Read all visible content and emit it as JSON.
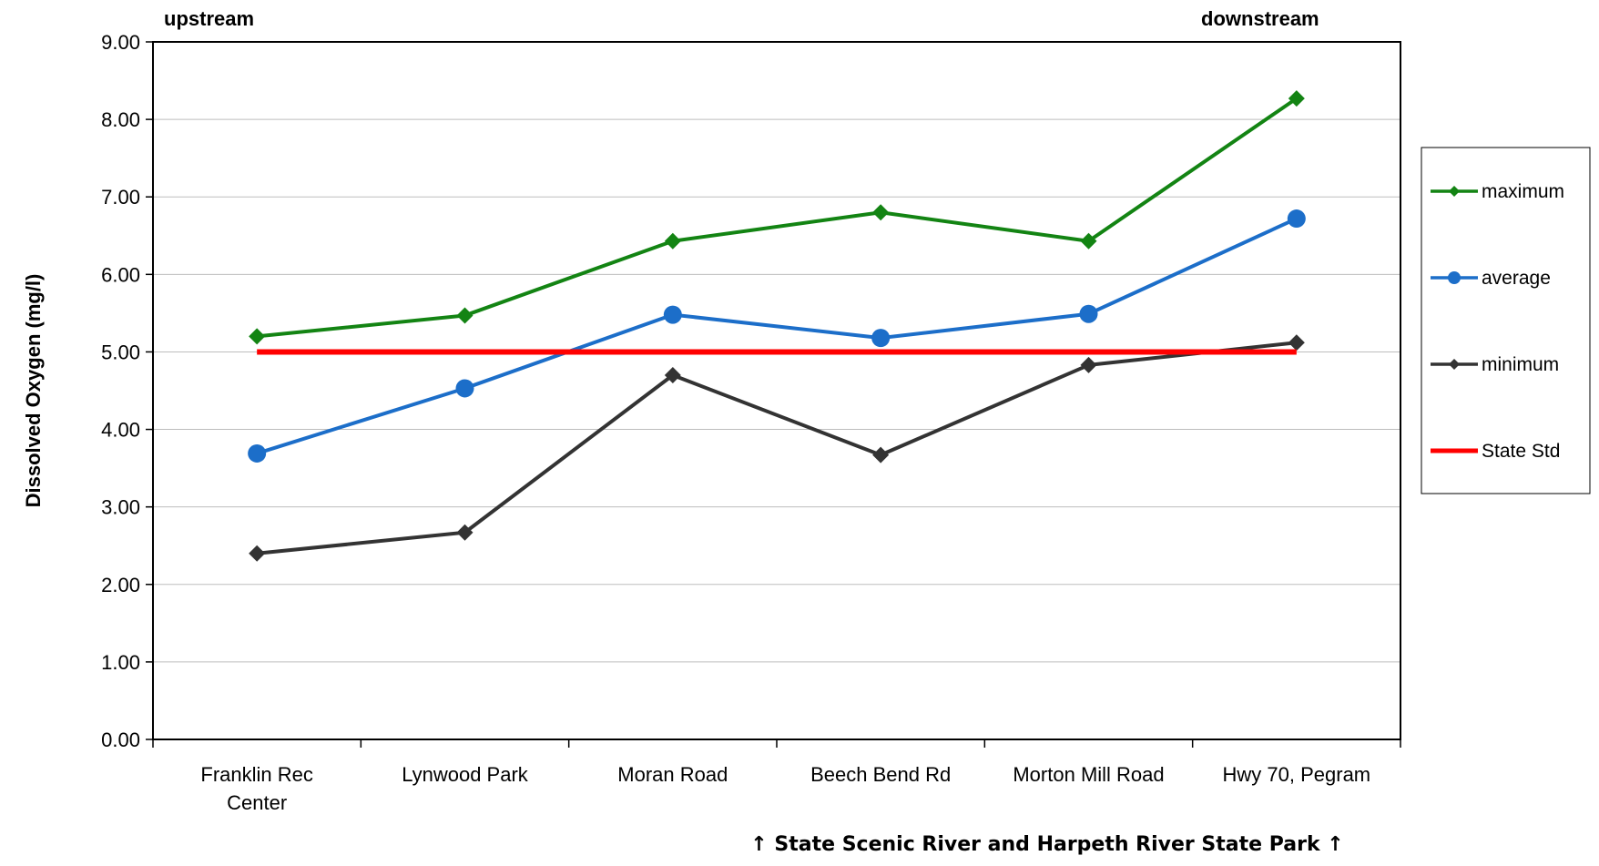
{
  "chart_data": {
    "type": "line",
    "title": "",
    "xlabel": "",
    "ylabel": "Dissolved Oxygen (mg/l)",
    "ylim": [
      0,
      9
    ],
    "yticks": [
      "0.00",
      "1.00",
      "2.00",
      "3.00",
      "4.00",
      "5.00",
      "6.00",
      "7.00",
      "8.00",
      "9.00"
    ],
    "grid": true,
    "legend_position": "right",
    "categories": [
      "Franklin Rec Center",
      "Lynwood Park",
      "Moran Road",
      "Beech Bend Rd",
      "Morton Mill Road",
      "Hwy 70, Pegram"
    ],
    "category_lines": [
      [
        "Franklin Rec",
        "Center"
      ],
      [
        "Lynwood Park"
      ],
      [
        "Moran Road"
      ],
      [
        "Beech Bend Rd"
      ],
      [
        "Morton Mill Road"
      ],
      [
        "Hwy 70, Pegram"
      ]
    ],
    "series": [
      {
        "name": "maximum",
        "values": [
          5.2,
          5.47,
          6.43,
          6.8,
          6.43,
          8.27
        ],
        "color": "#138413",
        "marker": "diamond"
      },
      {
        "name": "average",
        "values": [
          3.69,
          4.53,
          5.48,
          5.18,
          5.49,
          6.72
        ],
        "color": "#1c6ec9",
        "marker": "circle"
      },
      {
        "name": "minimum",
        "values": [
          2.4,
          2.67,
          4.7,
          3.67,
          4.83,
          5.12
        ],
        "color": "#333333",
        "marker": "diamond"
      },
      {
        "name": "State Std",
        "values": [
          5.0,
          5.0,
          5.0,
          5.0,
          5.0,
          5.0
        ],
        "color": "#ff0000",
        "marker": "none"
      }
    ],
    "annotations": {
      "upstream": "upstream",
      "downstream": "downstream",
      "bottom_note": "↑ State Scenic River and Harpeth River State Park ↑"
    }
  }
}
